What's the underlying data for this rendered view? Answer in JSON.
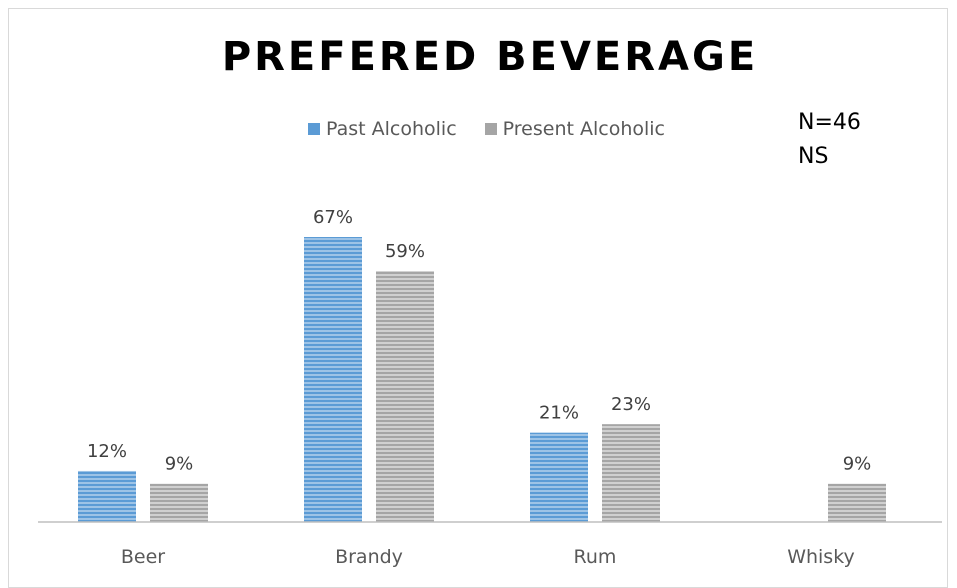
{
  "chart_data": {
    "type": "bar",
    "title": "PREFERED BEVERAGE",
    "categories": [
      "Beer",
      "Brandy",
      "Rum",
      "Whisky"
    ],
    "series": [
      {
        "name": "Past Alcoholic",
        "values": [
          12,
          67,
          21,
          null
        ],
        "labels": [
          "12%",
          "67%",
          "21%",
          ""
        ],
        "color": "#5b9bd5"
      },
      {
        "name": "Present Alcoholic",
        "values": [
          9,
          59,
          23,
          9
        ],
        "labels": [
          "9%",
          "59%",
          "23%",
          "9%"
        ],
        "color": "#a5a5a5"
      }
    ],
    "annotations": [
      "N=46",
      "NS"
    ],
    "legend_position": "top",
    "ylim": [
      0,
      70
    ],
    "grid": false
  }
}
